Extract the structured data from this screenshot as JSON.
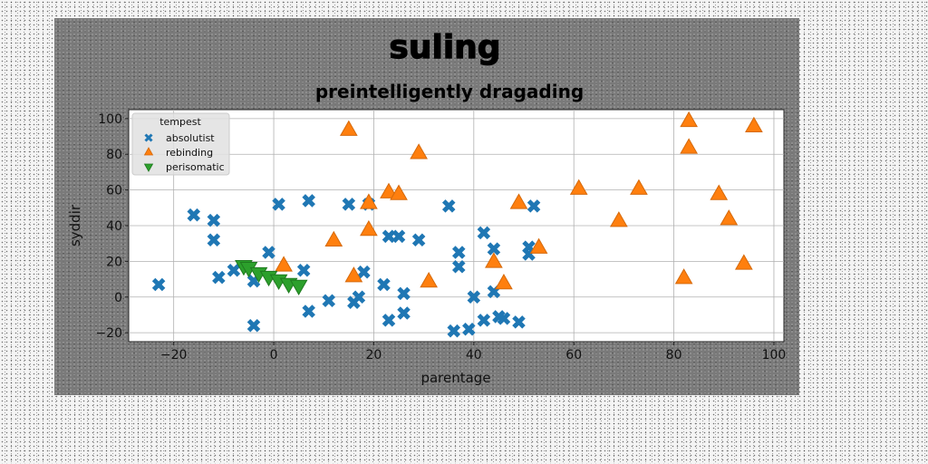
{
  "chart_data": {
    "type": "scatter",
    "title": "suling",
    "subtitle": "preintelligently dragading",
    "xlabel": "parentage",
    "ylabel": "syddir",
    "xlim": [
      -29,
      102
    ],
    "ylim": [
      -25,
      105
    ],
    "xticks": [
      -20,
      0,
      20,
      40,
      60,
      80,
      100
    ],
    "yticks": [
      -20,
      0,
      20,
      40,
      60,
      80,
      100
    ],
    "xtick_labels": [
      "−20",
      "0",
      "20",
      "40",
      "60",
      "80",
      "100"
    ],
    "ytick_labels": [
      "−20",
      "0",
      "20",
      "40",
      "60",
      "80",
      "100"
    ],
    "grid": true,
    "legend": {
      "title": "tempest",
      "position": "top-left"
    },
    "series": [
      {
        "name": "absolutist",
        "marker": "x",
        "color": "#1f77b4",
        "points": [
          [
            -23,
            7
          ],
          [
            -16,
            46
          ],
          [
            -12,
            43
          ],
          [
            -12,
            32
          ],
          [
            -11,
            11
          ],
          [
            -8,
            15
          ],
          [
            -4,
            -16
          ],
          [
            -4,
            9
          ],
          [
            -1,
            25
          ],
          [
            1,
            52
          ],
          [
            6,
            15
          ],
          [
            7,
            -8
          ],
          [
            7,
            54
          ],
          [
            11,
            -2
          ],
          [
            15,
            52
          ],
          [
            16,
            -3
          ],
          [
            17,
            0
          ],
          [
            18,
            14
          ],
          [
            19,
            52
          ],
          [
            22,
            7
          ],
          [
            23,
            34
          ],
          [
            23,
            -13
          ],
          [
            25,
            34
          ],
          [
            26,
            2
          ],
          [
            26,
            -9
          ],
          [
            29,
            32
          ],
          [
            35,
            51
          ],
          [
            36,
            -19
          ],
          [
            37,
            25
          ],
          [
            37,
            17
          ],
          [
            39,
            -18
          ],
          [
            40,
            0
          ],
          [
            42,
            36
          ],
          [
            42,
            -13
          ],
          [
            44,
            27
          ],
          [
            44,
            3
          ],
          [
            45,
            -11
          ],
          [
            46,
            -12
          ],
          [
            49,
            -14
          ],
          [
            51,
            28
          ],
          [
            51,
            24
          ],
          [
            52,
            51
          ]
        ]
      },
      {
        "name": "rebinding",
        "marker": "triangle-up",
        "color": "#ff7f0e",
        "points": [
          [
            2,
            18
          ],
          [
            12,
            32
          ],
          [
            15,
            94
          ],
          [
            16,
            12
          ],
          [
            19,
            53
          ],
          [
            19,
            38
          ],
          [
            23,
            59
          ],
          [
            25,
            58
          ],
          [
            29,
            81
          ],
          [
            31,
            9
          ],
          [
            44,
            20
          ],
          [
            46,
            8
          ],
          [
            49,
            53
          ],
          [
            53,
            28
          ],
          [
            61,
            61
          ],
          [
            69,
            43
          ],
          [
            73,
            61
          ],
          [
            82,
            11
          ],
          [
            83,
            99
          ],
          [
            83,
            84
          ],
          [
            89,
            58
          ],
          [
            91,
            44
          ],
          [
            94,
            19
          ],
          [
            96,
            96
          ]
        ]
      },
      {
        "name": "perisomatic",
        "marker": "triangle-down",
        "color": "#2ca02c",
        "points": [
          [
            -6,
            17
          ],
          [
            -5,
            16
          ],
          [
            -3,
            13
          ],
          [
            -1,
            11
          ],
          [
            1,
            9
          ],
          [
            3,
            7
          ],
          [
            5,
            6
          ]
        ]
      }
    ]
  }
}
